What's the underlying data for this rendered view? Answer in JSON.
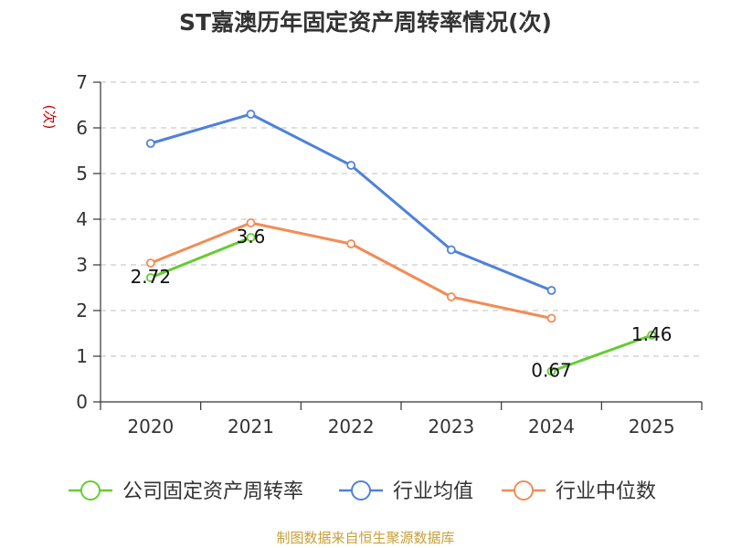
{
  "chart_data": {
    "type": "line",
    "title": "ST嘉澳历年固定资产周转率情况(次)",
    "ylabel": "(次)",
    "xlabel": "",
    "ylim": [
      0,
      7
    ],
    "yticks": [
      "0",
      "1",
      "2",
      "3",
      "4",
      "5",
      "6",
      "7"
    ],
    "categories": [
      "2020",
      "2021",
      "2022",
      "2023",
      "2024",
      "2025"
    ],
    "grid": true,
    "legend_position": "bottom",
    "series": [
      {
        "name": "公司固定资产周转率",
        "color": "#66cc33",
        "values": [
          2.72,
          3.6,
          null,
          null,
          0.67,
          1.46
        ],
        "labels": [
          "2.72",
          "3.6",
          null,
          null,
          "0.67",
          "1.46"
        ]
      },
      {
        "name": "行业均值",
        "color": "#4f81db",
        "values": [
          5.66,
          6.3,
          5.18,
          3.33,
          2.44,
          null
        ]
      },
      {
        "name": "行业中位数",
        "color": "#f28c56",
        "values": [
          3.04,
          3.92,
          3.46,
          2.3,
          1.83,
          null
        ]
      }
    ],
    "source": "制图数据来自恒生聚源数据库",
    "colors": {
      "title": "#333333",
      "ylabel": "#cc0000",
      "source": "#c8a038",
      "grid": "#cccccc",
      "axis": "#333333"
    }
  }
}
